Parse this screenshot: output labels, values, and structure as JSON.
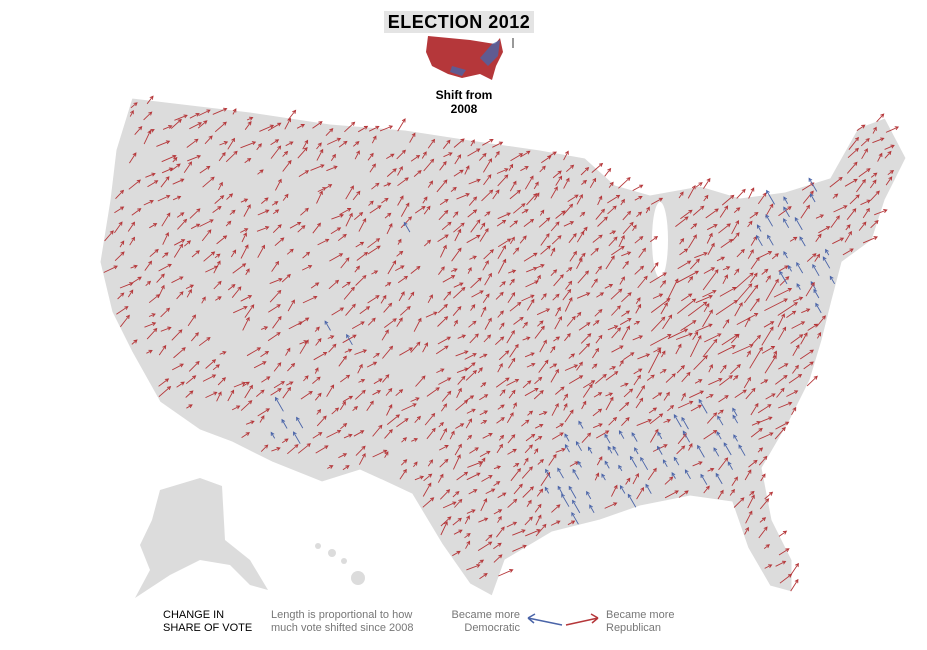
{
  "header": {
    "title": "ELECTION 2012"
  },
  "thumbnail": {
    "caption": "Shift from 2008"
  },
  "legend": {
    "title": "CHANGE IN SHARE OF VOTE",
    "note": "Length is proportional to how much vote shifted since 2008",
    "democratic": "Became more Democratic",
    "republican": "Became more Republican"
  }
}
